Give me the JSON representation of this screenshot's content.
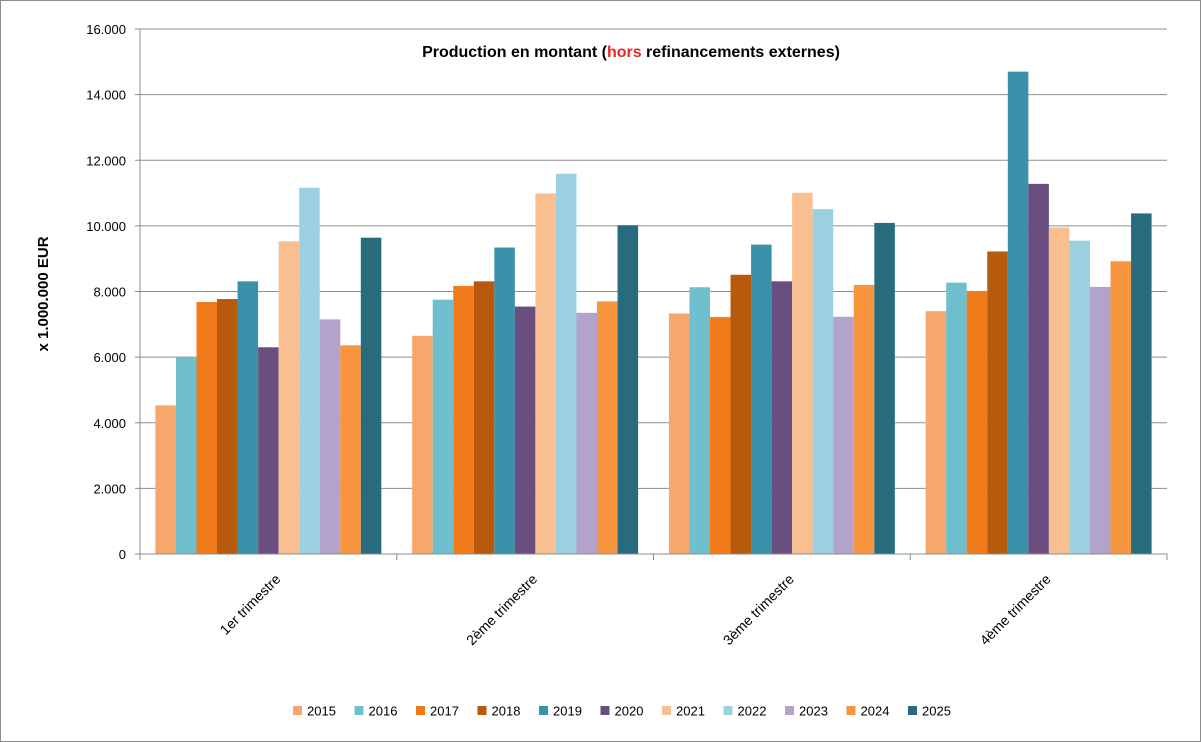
{
  "chart_data": {
    "type": "bar",
    "title_parts": [
      "Production en montant (",
      "hors",
      " refinancements externes)"
    ],
    "title_highlight_color": "#e8261e",
    "ylabel": "x 1.000.000 EUR",
    "xlabel": "",
    "ylim": [
      0,
      16000
    ],
    "yticks": [
      0,
      2000,
      4000,
      6000,
      8000,
      10000,
      12000,
      14000,
      16000
    ],
    "ytick_labels": [
      "0",
      "2.000",
      "4.000",
      "6.000",
      "8.000",
      "10.000",
      "12.000",
      "14.000",
      "16.000"
    ],
    "grid": true,
    "legend_position": "bottom",
    "categories": [
      "1er trimestre",
      "2ème trimestre",
      "3ème trimestre",
      "4ème trimestre"
    ],
    "series": [
      {
        "name": "2015",
        "color": "#f7a76b",
        "values": [
          4530,
          6650,
          7330,
          7400
        ]
      },
      {
        "name": "2016",
        "color": "#6fbfcf",
        "values": [
          6000,
          7750,
          8130,
          8270
        ]
      },
      {
        "name": "2017",
        "color": "#f07b18",
        "values": [
          7680,
          8170,
          7220,
          8010
        ]
      },
      {
        "name": "2018",
        "color": "#b85a0d",
        "values": [
          7770,
          8310,
          8510,
          9220
        ]
      },
      {
        "name": "2019",
        "color": "#3a92aa",
        "values": [
          8310,
          9340,
          9430,
          14700
        ]
      },
      {
        "name": "2020",
        "color": "#6a4e80",
        "values": [
          6300,
          7540,
          8310,
          11280
        ]
      },
      {
        "name": "2021",
        "color": "#fabf91",
        "values": [
          9530,
          10990,
          11010,
          9950
        ]
      },
      {
        "name": "2022",
        "color": "#9bd0e0",
        "values": [
          11160,
          11590,
          10510,
          9550
        ]
      },
      {
        "name": "2023",
        "color": "#b3a2c9",
        "values": [
          7150,
          7350,
          7230,
          8140
        ]
      },
      {
        "name": "2024",
        "color": "#f7963f",
        "values": [
          6360,
          7700,
          8200,
          8920
        ]
      },
      {
        "name": "2025",
        "color": "#296b7e",
        "values": [
          9640,
          10020,
          10090,
          10380
        ]
      }
    ]
  }
}
